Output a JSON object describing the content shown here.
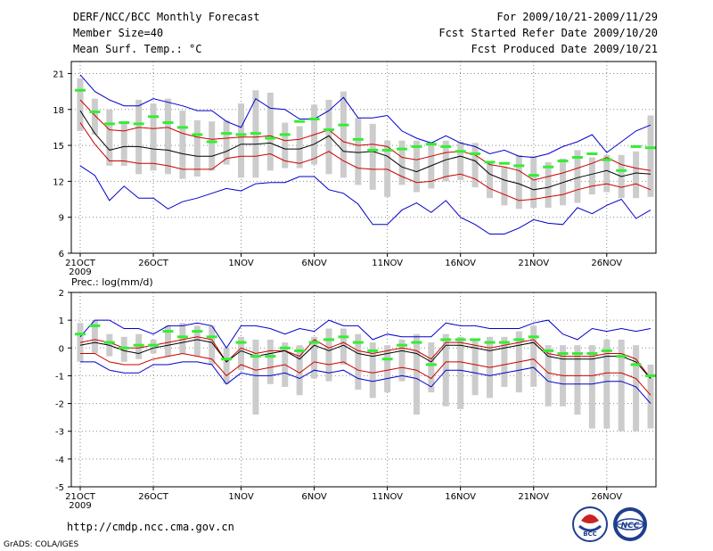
{
  "header": {
    "title": "DERF/NCC/BCC Monthly Forecast",
    "member_size": "Member Size=40",
    "variable": "Mean Surf. Temp.: °C",
    "period": "For 2009/10/21-2009/11/29",
    "started": "Fcst Started Refer Date 2009/10/20",
    "produced": "Fcst Produced Date 2009/10/21"
  },
  "footer": {
    "url": "http://cmdp.ncc.cma.gov.cn",
    "grads": "GrADS: COLA/IGES",
    "logo_bcc": "BCC",
    "logo_ncc": "NCC"
  },
  "colors": {
    "max_min": "#0000cc",
    "quartile": "#cc0000",
    "median": "#000000",
    "box": "#cccccc",
    "mean_marker": "#33ee33"
  },
  "chart_data": [
    {
      "type": "line",
      "title": "Mean Surf. Temp.: °C",
      "xlabel": "",
      "ylabel": "",
      "x_ticks": [
        "21OCT",
        "26OCT",
        "1NOV",
        "6NOV",
        "11NOV",
        "16NOV",
        "21NOV",
        "26NOV"
      ],
      "x_year_label": "2009",
      "y_ticks": [
        6,
        9,
        12,
        15,
        18,
        21
      ],
      "ylim": [
        6,
        22
      ],
      "days": 40,
      "series": [
        {
          "name": "max",
          "values": [
            20.9,
            19.5,
            18.8,
            18.3,
            18.3,
            18.9,
            18.6,
            18.3,
            17.9,
            17.9,
            17.0,
            16.5,
            18.9,
            18.1,
            18.0,
            17.2,
            17.2,
            17.9,
            19.0,
            17.3,
            17.3,
            17.5,
            16.2,
            15.6,
            15.2,
            15.8,
            15.2,
            14.9,
            14.3,
            14.6,
            14.1,
            14.0,
            14.3,
            14.9,
            15.3,
            15.9,
            14.4,
            15.3,
            16.2,
            16.7
          ]
        },
        {
          "name": "q75",
          "values": [
            18.8,
            17.5,
            16.3,
            16.2,
            16.5,
            16.4,
            16.5,
            16.0,
            15.7,
            15.5,
            15.6,
            15.7,
            15.7,
            15.8,
            15.4,
            15.5,
            15.9,
            16.3,
            15.3,
            15.0,
            15.1,
            14.9,
            14.0,
            13.8,
            14.1,
            14.4,
            14.5,
            14.2,
            13.4,
            13.2,
            12.9,
            12.1,
            12.4,
            12.7,
            13.1,
            13.5,
            14.0,
            13.4,
            13.1,
            12.9
          ]
        },
        {
          "name": "median",
          "values": [
            17.9,
            16.0,
            14.6,
            14.9,
            14.9,
            14.7,
            14.6,
            14.3,
            14.1,
            14.1,
            14.5,
            15.1,
            15.1,
            15.2,
            14.7,
            14.7,
            15.1,
            15.8,
            14.5,
            14.4,
            14.5,
            14.1,
            13.2,
            12.8,
            13.3,
            13.8,
            14.1,
            13.7,
            12.6,
            12.1,
            11.8,
            11.3,
            11.5,
            11.9,
            12.3,
            12.6,
            12.9,
            12.4,
            12.7,
            12.6
          ]
        },
        {
          "name": "q25",
          "values": [
            16.9,
            15.1,
            13.7,
            13.7,
            13.5,
            13.5,
            13.3,
            13.0,
            13.0,
            13.0,
            13.9,
            14.1,
            14.1,
            14.3,
            13.7,
            13.5,
            13.9,
            14.5,
            13.7,
            13.1,
            13.0,
            13.0,
            12.4,
            11.9,
            12.0,
            12.4,
            12.6,
            12.2,
            11.4,
            10.9,
            10.4,
            10.5,
            10.7,
            10.9,
            11.3,
            11.6,
            11.8,
            11.5,
            11.8,
            11.3
          ]
        },
        {
          "name": "min",
          "values": [
            13.3,
            12.5,
            10.4,
            11.6,
            10.6,
            10.6,
            9.7,
            10.3,
            10.6,
            11.0,
            11.4,
            11.2,
            11.8,
            11.9,
            11.9,
            12.4,
            12.4,
            11.3,
            11.0,
            10.1,
            8.4,
            8.4,
            9.6,
            10.2,
            9.4,
            10.4,
            9.0,
            8.4,
            7.6,
            7.6,
            8.1,
            8.8,
            8.5,
            8.4,
            9.8,
            9.3,
            10.0,
            10.5,
            8.9,
            9.6
          ]
        },
        {
          "name": "mean",
          "values": [
            19.6,
            17.8,
            16.8,
            16.9,
            16.8,
            17.4,
            16.9,
            16.5,
            15.9,
            15.3,
            16.0,
            15.9,
            16.0,
            15.6,
            15.9,
            17.0,
            17.2,
            16.3,
            16.7,
            15.5,
            14.6,
            14.6,
            14.7,
            14.9,
            15.1,
            14.9,
            14.5,
            14.3,
            13.6,
            13.5,
            13.3,
            12.5,
            13.2,
            13.7,
            14.0,
            14.3,
            13.8,
            12.9,
            14.9,
            14.8
          ]
        },
        {
          "name": "box_top",
          "values": [
            20.6,
            18.9,
            18.0,
            16.9,
            18.8,
            18.5,
            18.9,
            17.9,
            17.1,
            17.0,
            17.1,
            18.5,
            19.6,
            19.4,
            16.9,
            16.6,
            18.4,
            18.8,
            19.5,
            17.3,
            16.8,
            15.4,
            15.4,
            15.4,
            15.3,
            15.4,
            15.3,
            15.2,
            13.6,
            13.2,
            14.2,
            14.1,
            13.6,
            13.9,
            14.6,
            14.0,
            14.2,
            14.2,
            14.5,
            17.5
          ]
        },
        {
          "name": "box_bottom",
          "values": [
            16.2,
            15.9,
            13.3,
            13.3,
            12.6,
            12.9,
            12.6,
            12.2,
            12.4,
            12.9,
            13.4,
            12.3,
            12.3,
            12.9,
            13.1,
            13.1,
            13.4,
            12.6,
            12.3,
            11.7,
            11.3,
            10.7,
            11.7,
            11.1,
            11.4,
            12.0,
            12.1,
            11.5,
            10.6,
            10.0,
            9.7,
            9.8,
            9.8,
            10.0,
            10.2,
            10.9,
            11.1,
            10.6,
            10.6,
            10.7
          ]
        }
      ]
    },
    {
      "type": "line",
      "title": "Prec.: log(mm/d)",
      "xlabel": "",
      "ylabel": "",
      "x_ticks": [
        "21OCT",
        "26OCT",
        "1NOV",
        "6NOV",
        "11NOV",
        "16NOV",
        "21NOV",
        "26NOV"
      ],
      "x_year_label": "2009",
      "y_ticks": [
        -5,
        -4,
        -3,
        -2,
        -1,
        0,
        1,
        2
      ],
      "ylim": [
        -5,
        2
      ],
      "days": 40,
      "series": [
        {
          "name": "max",
          "values": [
            0.4,
            1.0,
            1.0,
            0.7,
            0.7,
            0.5,
            0.8,
            0.8,
            0.9,
            0.8,
            0.0,
            0.8,
            0.8,
            0.7,
            0.5,
            0.7,
            0.6,
            1.0,
            0.8,
            0.8,
            0.3,
            0.5,
            0.4,
            0.4,
            0.4,
            0.9,
            0.8,
            0.8,
            0.7,
            0.7,
            0.7,
            0.9,
            1.0,
            0.5,
            0.3,
            0.7,
            0.6,
            0.7,
            0.6,
            0.7
          ]
        },
        {
          "name": "q75",
          "values": [
            0.2,
            0.3,
            0.2,
            0.0,
            0.0,
            0.1,
            0.2,
            0.3,
            0.4,
            0.3,
            -0.5,
            0.0,
            -0.2,
            -0.1,
            -0.1,
            -0.3,
            0.3,
            0.0,
            0.2,
            -0.1,
            -0.2,
            -0.1,
            0.0,
            -0.1,
            -0.4,
            0.2,
            0.2,
            0.1,
            0.0,
            0.1,
            0.2,
            0.3,
            -0.2,
            -0.3,
            -0.3,
            -0.3,
            -0.2,
            -0.2,
            -0.4,
            -1.1
          ]
        },
        {
          "name": "median",
          "values": [
            0.1,
            0.2,
            0.1,
            -0.1,
            -0.2,
            0.0,
            0.1,
            0.2,
            0.3,
            0.2,
            -0.5,
            -0.1,
            -0.3,
            -0.2,
            -0.1,
            -0.4,
            0.1,
            -0.1,
            0.1,
            -0.2,
            -0.3,
            -0.2,
            -0.1,
            -0.2,
            -0.5,
            0.1,
            0.1,
            0.0,
            -0.1,
            0.0,
            0.1,
            0.2,
            -0.3,
            -0.4,
            -0.4,
            -0.4,
            -0.3,
            -0.3,
            -0.5,
            -1.1
          ]
        },
        {
          "name": "q25",
          "values": [
            -0.2,
            -0.2,
            -0.5,
            -0.6,
            -0.6,
            -0.4,
            -0.3,
            -0.2,
            -0.3,
            -0.4,
            -1.0,
            -0.6,
            -0.8,
            -0.7,
            -0.6,
            -0.9,
            -0.5,
            -0.6,
            -0.5,
            -0.8,
            -0.9,
            -0.8,
            -0.7,
            -0.8,
            -1.1,
            -0.5,
            -0.5,
            -0.6,
            -0.7,
            -0.6,
            -0.5,
            -0.4,
            -0.9,
            -1.0,
            -1.0,
            -1.0,
            -0.9,
            -0.9,
            -1.1,
            -1.7
          ]
        },
        {
          "name": "min",
          "values": [
            -0.5,
            -0.5,
            -0.8,
            -0.9,
            -0.9,
            -0.6,
            -0.6,
            -0.5,
            -0.5,
            -0.6,
            -1.3,
            -0.9,
            -1.0,
            -1.0,
            -0.9,
            -1.1,
            -0.8,
            -0.9,
            -0.8,
            -1.1,
            -1.2,
            -1.1,
            -1.0,
            -1.1,
            -1.4,
            -0.8,
            -0.8,
            -0.9,
            -1.0,
            -0.9,
            -0.8,
            -0.7,
            -1.2,
            -1.3,
            -1.3,
            -1.3,
            -1.2,
            -1.2,
            -1.4,
            -2.0
          ]
        },
        {
          "name": "mean",
          "values": [
            0.5,
            0.8,
            0.2,
            0.0,
            0.1,
            0.1,
            0.6,
            0.4,
            0.6,
            0.4,
            -0.4,
            0.2,
            -0.3,
            -0.3,
            0.0,
            -0.1,
            0.2,
            0.3,
            0.4,
            0.2,
            -0.1,
            -0.4,
            0.1,
            0.2,
            -0.6,
            0.3,
            0.3,
            0.3,
            0.2,
            0.2,
            0.3,
            0.4,
            -0.1,
            -0.2,
            -0.2,
            -0.2,
            -0.1,
            -0.3,
            -0.6,
            -1.0
          ]
        },
        {
          "name": "box_top",
          "values": [
            0.9,
            1.0,
            0.5,
            0.4,
            0.5,
            0.3,
            0.8,
            0.9,
            0.8,
            0.8,
            0.0,
            0.4,
            0.3,
            0.3,
            0.2,
            0.1,
            0.4,
            0.7,
            0.7,
            0.5,
            0.2,
            0.1,
            0.3,
            0.5,
            0.2,
            0.5,
            0.4,
            0.3,
            0.4,
            0.4,
            0.6,
            0.8,
            0.1,
            0.1,
            0.1,
            0.1,
            0.3,
            0.3,
            0.1,
            -0.6
          ]
        },
        {
          "name": "box_bottom",
          "values": [
            -0.5,
            -0.2,
            -0.3,
            -0.5,
            -0.4,
            -0.2,
            -0.3,
            -0.2,
            -0.3,
            -0.6,
            -1.3,
            -0.8,
            -2.4,
            -1.3,
            -1.4,
            -1.7,
            -1.1,
            -1.2,
            -0.6,
            -1.5,
            -1.8,
            -1.6,
            -1.2,
            -2.4,
            -1.6,
            -2.1,
            -2.2,
            -1.7,
            -1.8,
            -1.4,
            -1.6,
            -1.4,
            -2.1,
            -2.1,
            -2.4,
            -2.9,
            -2.9,
            -3.0,
            -3.0,
            -2.9
          ]
        }
      ]
    }
  ]
}
